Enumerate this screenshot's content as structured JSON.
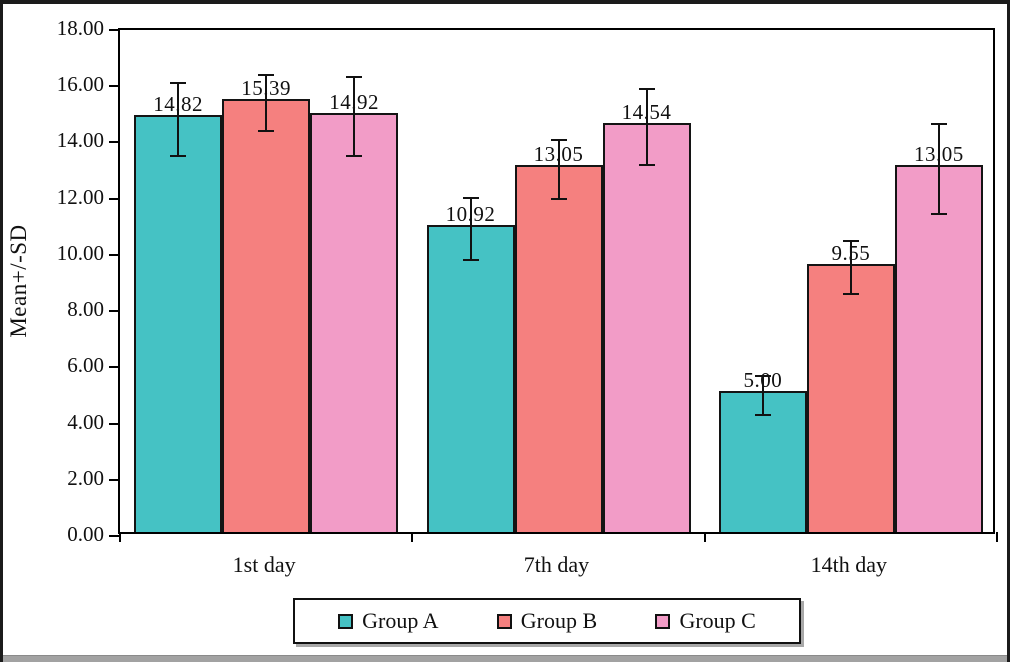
{
  "chart_data": {
    "type": "bar",
    "title": "",
    "xlabel": "",
    "ylabel": "Mean+/-SD",
    "ylim": [
      0,
      18
    ],
    "ytick_step": 2,
    "ytick_labels": [
      "0.00",
      "2.00",
      "4.00",
      "6.00",
      "8.00",
      "10.00",
      "12.00",
      "14.00",
      "16.00",
      "18.00"
    ],
    "grid": "off",
    "categories": [
      "1st day",
      "7th day",
      "14th day"
    ],
    "series": [
      {
        "name": "Group A",
        "color": "#45C2C4",
        "values": [
          14.82,
          10.92,
          5.0
        ],
        "value_labels": [
          "14.82",
          "10.92",
          "5.00"
        ],
        "errors": [
          1.3,
          1.1,
          0.7
        ]
      },
      {
        "name": "Group B",
        "color": "#F5807F",
        "values": [
          15.39,
          13.05,
          9.55
        ],
        "value_labels": [
          "15.39",
          "13.05",
          "9.55"
        ],
        "errors": [
          1.0,
          1.05,
          0.95
        ]
      },
      {
        "name": "Group C",
        "color": "#F29CC7",
        "values": [
          14.92,
          14.54,
          13.05
        ],
        "value_labels": [
          "14.92",
          "14.54",
          "13.05"
        ],
        "errors": [
          1.4,
          1.35,
          1.6
        ]
      }
    ],
    "legend": {
      "position": "bottom",
      "entries": [
        "Group A",
        "Group B",
        "Group C"
      ]
    },
    "colors": {
      "axis": "#000000",
      "figure_border": "#1b1b1b",
      "background": "#ffffff",
      "bottom_strip": "#a2a2a2"
    }
  }
}
